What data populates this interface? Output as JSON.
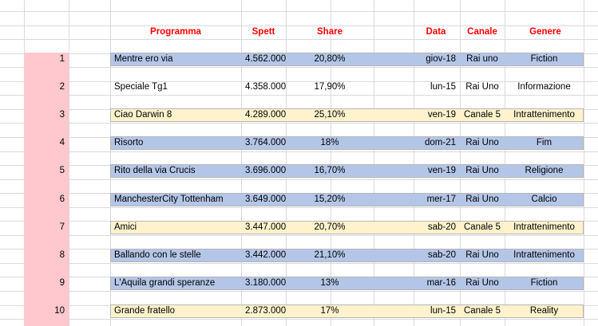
{
  "colors": {
    "header_text": "#ff0000",
    "row_blue": "#b4c6e7",
    "row_yellow": "#fff2cc",
    "index_pink": "#ffc7ce",
    "grid": "#dadada"
  },
  "headers": {
    "programma": "Programma",
    "spett": "Spett",
    "share": "Share",
    "data": "Data",
    "canale": "Canale",
    "genere": "Genere"
  },
  "rows": [
    {
      "rank": "1",
      "programma": "Mentre ero via",
      "spett": "4.562.000",
      "share": "20,80%",
      "data": "giov-18",
      "canale": "Rai uno",
      "genere": "Fiction",
      "color": "blue"
    },
    {
      "rank": "2",
      "programma": "Speciale Tg1",
      "spett": "4.358.000",
      "share": "17,90%",
      "data": "lun-15",
      "canale": "Rai Uno",
      "genere": "Informazione",
      "color": "none"
    },
    {
      "rank": "3",
      "programma": "Ciao Darwin 8",
      "spett": "4.289.000",
      "share": "25,10%",
      "data": "ven-19",
      "canale": "Canale 5",
      "genere": "Intrattenimento",
      "color": "yellow"
    },
    {
      "rank": "4",
      "programma": "Risorto",
      "spett": "3.764.000",
      "share": "18%",
      "data": "dom-21",
      "canale": "Rai Uno",
      "genere": "Fim",
      "color": "blue"
    },
    {
      "rank": "5",
      "programma": "Rito della via Crucis",
      "spett": "3.696.000",
      "share": "16,70%",
      "data": "ven-19",
      "canale": "Rai Uno",
      "genere": "Religione",
      "color": "blue"
    },
    {
      "rank": "6",
      "programma": "ManchesterCity Tottenham",
      "spett": "3.649.000",
      "share": "15,20%",
      "data": "mer-17",
      "canale": "Rai Uno",
      "genere": "Calcio",
      "color": "blue"
    },
    {
      "rank": "7",
      "programma": "Amici",
      "spett": "3.447.000",
      "share": "20,70%",
      "data": "sab-20",
      "canale": "Canale 5",
      "genere": "Intrattenimento",
      "color": "yellow"
    },
    {
      "rank": "8",
      "programma": "Ballando con le stelle",
      "spett": "3.442.000",
      "share": "21,10%",
      "data": "sab-20",
      "canale": "Rai Uno",
      "genere": "Intrattenimento",
      "color": "blue"
    },
    {
      "rank": "9",
      "programma": "L'Aquila grandi speranze",
      "spett": "3.180.000",
      "share": "13%",
      "data": "mar-16",
      "canale": "Rai Uno",
      "genere": "Fiction",
      "color": "blue"
    },
    {
      "rank": "10",
      "programma": "Grande fratello",
      "spett": "2.873.000",
      "share": "17%",
      "data": "lun-15",
      "canale": "Canale 5",
      "genere": "Reality",
      "color": "yellow"
    }
  ]
}
